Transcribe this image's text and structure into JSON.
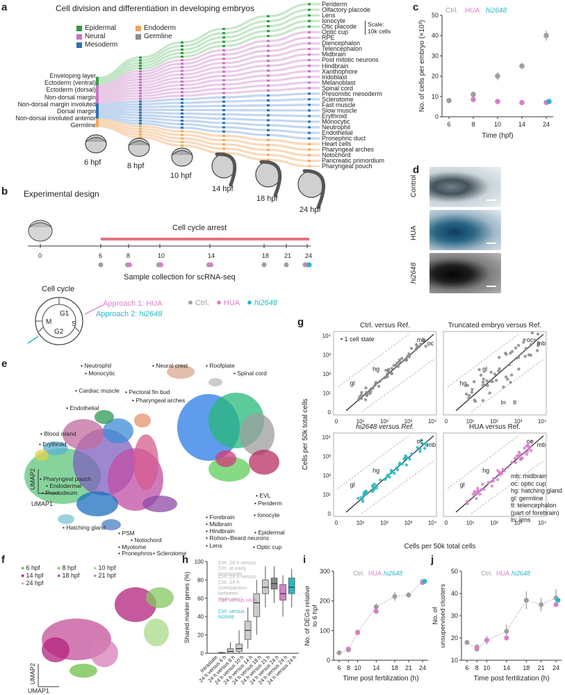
{
  "panels": [
    "a",
    "b",
    "c",
    "d",
    "e",
    "f",
    "g",
    "h",
    "i",
    "j"
  ],
  "a": {
    "title": "Cell division and differentiation in developing embryos",
    "legend": [
      {
        "label": "Epidermal",
        "color": "#2e9a3e"
      },
      {
        "label": "Neural",
        "color": "#c774c4"
      },
      {
        "label": "Mesoderm",
        "color": "#2a6fb5"
      },
      {
        "label": "Endoderm",
        "color": "#f2a65a"
      },
      {
        "label": "Germline",
        "color": "#8c8c8c"
      }
    ],
    "left_labels": [
      "Enveloping layer",
      "Ectoderm (ventral)",
      "Ectoderm (dorsal)",
      "Non-dorsal margin",
      "Non-dorsal margin involuted",
      "Dorsal margin",
      "Non-dorsal involuted anterior",
      "Germline"
    ],
    "right_labels": [
      "Periderm",
      "Olfactory placode",
      "Lens",
      "Ionocyte",
      "Otic placode",
      "Optic cup",
      "RPE",
      "Diencephalon",
      "Telencephalon",
      "Midbrain",
      "Post mitotic neurons",
      "Hindbrain",
      "Xanthophore",
      "Iridoblast",
      "Melanoblast",
      "Spinal cord",
      "Presomitic mesoderm",
      "Sclerotome",
      "Fast muscle",
      "Slow muscle",
      "Erythroid",
      "Monocytic",
      "Neutrophil",
      "Endothelial",
      "Pronephric duct",
      "Heart cells",
      "Pharyngeal arches",
      "Notochord",
      "Pancreatic primordium",
      "Pharyngeal pouch"
    ],
    "scale_label": "Scale:",
    "scale_value": "10k cells",
    "stages": [
      "6 hpf",
      "8 hpf",
      "10 hpf",
      "14 hpf",
      "18 hpf",
      "24 hpf"
    ]
  },
  "b": {
    "title": "Experimental design",
    "arrest": "Cell cycle arrest",
    "timeline": [
      "0",
      "6",
      "8",
      "10",
      "14",
      "18",
      "21",
      "24"
    ],
    "sample_label": "Sample collection for scRNA-seq",
    "cycle_title": "Cell cycle",
    "phases": [
      "G1",
      "S",
      "G2",
      "M"
    ],
    "approach1": "Approach 1: HUA",
    "approach2_prefix": "Approach 2: ",
    "approach2_name": "hi2648",
    "legend": [
      {
        "label": "Ctrl.",
        "color": "#9e9e9e"
      },
      {
        "label": "HUA",
        "color": "#d77fc9"
      },
      {
        "label": "hi2648",
        "color": "#27b8c2"
      }
    ]
  },
  "c": {
    "chart_data": {
      "type": "scatter",
      "legend": [
        "Ctrl.",
        "HUA",
        "hi2648"
      ],
      "x": [
        6,
        8,
        10,
        14,
        24
      ],
      "series": [
        {
          "name": "Ctrl.",
          "x": [
            6,
            8,
            10,
            14,
            24
          ],
          "values": [
            8,
            11,
            20,
            25,
            40
          ],
          "err": [
            1,
            1.5,
            2,
            1.5,
            2.5
          ],
          "color": "#9e9e9e"
        },
        {
          "name": "HUA",
          "x": [
            8,
            10,
            14,
            24
          ],
          "values": [
            8.5,
            7.5,
            7,
            7
          ],
          "color": "#d77fc9"
        },
        {
          "name": "hi2648",
          "x": [
            24
          ],
          "values": [
            7.5
          ],
          "color": "#27b8c2"
        }
      ],
      "ylabel": "No. of cells per embryo (×10³)",
      "xlabel": "Time (hpf)",
      "ylim": [
        0,
        50
      ],
      "yticks": [
        0,
        10,
        20,
        30,
        40,
        50
      ],
      "xticks": [
        "6",
        "8",
        "10",
        "14",
        "24"
      ]
    }
  },
  "d": {
    "labels": [
      "Control",
      "HUA",
      "hi2648"
    ]
  },
  "e": {
    "labels": [
      "Neutrophil",
      "Monocytic",
      "Cardiac muscle",
      "Endothelial",
      "Blood island",
      "Erythroid",
      "Pectoral fin bud",
      "Pharyngeal arches",
      "Neural crest",
      "Roofplate",
      "Spinal cord",
      "EVL",
      "Periderm",
      "Ionocyte",
      "Epidermal",
      "Optic cup",
      "Pharyngeal pouch",
      "Endodermal",
      "Proctodeum",
      "Hatching gland",
      "PSM",
      "Notochord",
      "Myotome",
      "Pronephros",
      "Sclerotome",
      "Forebrain",
      "Midbrain",
      "Hindbrain",
      "Rohon–Beard neurons",
      "Lens"
    ],
    "xlabel": "UMAP1",
    "ylabel": "UMAP2"
  },
  "f": {
    "legend": [
      {
        "label": "6 hpf",
        "color": "#6fbf47"
      },
      {
        "label": "8 hpf",
        "color": "#84c85e"
      },
      {
        "label": "10 hpf",
        "color": "#a9d98a"
      },
      {
        "label": "14 hpf",
        "color": "#b3227e"
      },
      {
        "label": "18 hpf",
        "color": "#c4509a"
      },
      {
        "label": "21 hpf",
        "color": "#d580b8"
      },
      {
        "label": "24 hpf",
        "color": "#e6b3d5"
      }
    ],
    "xlabel": "UMAP1",
    "ylabel": "UMAP2"
  },
  "g": {
    "panels": [
      {
        "title": "Ctrl. versus Ref.",
        "annotation": "• 1 cell state",
        "points": [
          "mb",
          "oc",
          "hg",
          "gl"
        ]
      },
      {
        "title": "Truncated embryo versus Ref.",
        "points": [
          "oc",
          "mb",
          "gl",
          "hg",
          "ln",
          "tl"
        ]
      },
      {
        "title": "hi2648 versus Ref.",
        "points": [
          "oc",
          "mb",
          "hg",
          "gl"
        ]
      },
      {
        "title": "HUA versus Ref.",
        "points": [
          "oc",
          "mb",
          "hg",
          "gl"
        ]
      }
    ],
    "xlabel": "Cells per 50k total cells",
    "ylabel": "Cells per 50k total cells",
    "ticks": [
      "0",
      "10¹",
      "10²",
      "10³",
      "10⁴"
    ],
    "key": [
      "mb: midbrain",
      "oc: optic cup",
      "hg: hatching gland",
      "gl: germline",
      "tl: telencephalon",
      "(part of forebrain)",
      "ln: lens"
    ]
  },
  "h": {
    "chart_data": {
      "type": "box",
      "ylabel": "Shared marker genes (%)",
      "ylim": [
        0,
        100
      ],
      "yticks": [
        0,
        20,
        40,
        60,
        80,
        100
      ],
      "legend": [
        "Ctrl. 24 h versus Ctrl. at early timepoints",
        "Ctrl. 24 h versus Ctrl. 24 h (comparison between replicates)",
        "Ctrl. versus HUA",
        "Ctrl. versus hi2648"
      ],
      "categories": [
        "Intrastate",
        "24 h versus 6 h",
        "24 h versus 8 h",
        "24 h versus 10 h",
        "24 h versus 14 h",
        "24 h versus 18 h",
        "24 h versus 21 h",
        "24 h versus 24 h",
        "24 h versus 24 h",
        "24 h versus 24 h"
      ],
      "boxes": [
        {
          "min": 0,
          "q1": 0,
          "med": 0,
          "q3": 1,
          "max": 2,
          "color": "#cccccc"
        },
        {
          "min": 0,
          "q1": 0,
          "med": 2,
          "q3": 5,
          "max": 12,
          "color": "#cccccc"
        },
        {
          "min": 0,
          "q1": 2,
          "med": 5,
          "q3": 10,
          "max": 25,
          "color": "#cccccc"
        },
        {
          "min": 5,
          "q1": 15,
          "med": 25,
          "q3": 35,
          "max": 50,
          "color": "#cccccc"
        },
        {
          "min": 20,
          "q1": 40,
          "med": 55,
          "q3": 65,
          "max": 80,
          "color": "#cccccc"
        },
        {
          "min": 50,
          "q1": 65,
          "med": 72,
          "q3": 80,
          "max": 95,
          "color": "#cccccc"
        },
        {
          "min": 55,
          "q1": 70,
          "med": 76,
          "q3": 82,
          "max": 95,
          "color": "#888888"
        },
        {
          "min": 40,
          "q1": 58,
          "med": 65,
          "q3": 75,
          "max": 85,
          "color": "#d77fc9"
        },
        {
          "min": 50,
          "q1": 65,
          "med": 72,
          "q3": 82,
          "max": 92,
          "color": "#27b8c2"
        }
      ]
    }
  },
  "i": {
    "chart_data": {
      "type": "line",
      "legend": [
        "Ctrl.",
        "HUA",
        "hi2648"
      ],
      "ylabel": "No. of DEGs relative to 6 hpf",
      "xlabel": "Time post fertilization (h)",
      "ylim": [
        0,
        300
      ],
      "yticks": [
        0,
        100,
        200,
        300
      ],
      "xticks": [
        "6",
        "8",
        "10",
        "14",
        "18",
        "21",
        "24"
      ],
      "series": [
        {
          "name": "Ctrl.",
          "x": [
            6,
            8,
            10,
            14,
            18,
            21,
            24
          ],
          "values": [
            25,
            35,
            95,
            180,
            215,
            220,
            265
          ],
          "err": [
            3,
            5,
            6,
            12,
            15,
            10,
            8
          ],
          "color": "#9e9e9e"
        },
        {
          "name": "HUA",
          "x": [
            8,
            10,
            14,
            24
          ],
          "values": [
            38,
            93,
            165,
            262
          ],
          "color": "#d77fc9"
        },
        {
          "name": "hi2648",
          "x": [
            24
          ],
          "values": [
            266
          ],
          "color": "#27b8c2"
        }
      ]
    }
  },
  "j": {
    "chart_data": {
      "type": "line",
      "legend": [
        "Ctrl.",
        "HUA",
        "hi2648"
      ],
      "ylabel": "No. of unsupervised clusters",
      "xlabel": "Time post fertilization (h)",
      "ylim": [
        10,
        50
      ],
      "yticks": [
        10,
        20,
        30,
        40,
        50
      ],
      "xticks": [
        "6",
        "8",
        "10",
        "14",
        "18",
        "21",
        "24"
      ],
      "series": [
        {
          "name": "Ctrl.",
          "x": [
            6,
            8,
            10,
            14,
            18,
            21,
            24
          ],
          "values": [
            18,
            15,
            19,
            23,
            37,
            35,
            38
          ],
          "err": [
            1,
            1,
            2,
            3,
            4,
            3,
            4
          ],
          "color": "#9e9e9e"
        },
        {
          "name": "HUA",
          "x": [
            8,
            10,
            14,
            24
          ],
          "values": [
            16,
            19,
            20,
            35
          ],
          "color": "#d77fc9"
        },
        {
          "name": "hi2648",
          "x": [
            24
          ],
          "values": [
            37
          ],
          "color": "#27b8c2"
        }
      ]
    }
  }
}
